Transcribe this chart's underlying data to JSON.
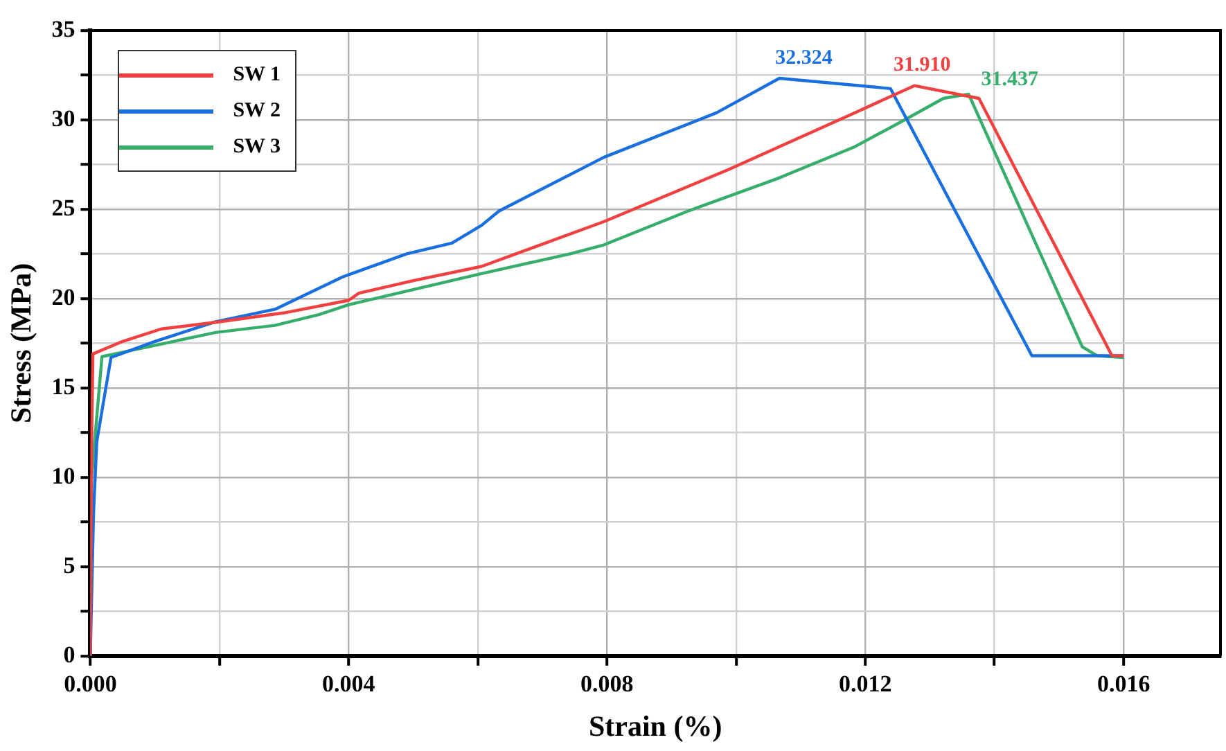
{
  "chart_data": {
    "type": "line",
    "xlabel": "Strain (%)",
    "ylabel": "Stress (MPa)",
    "xlim": [
      0,
      0.0175
    ],
    "ylim": [
      0,
      35
    ],
    "xticks": [
      {
        "value": 0,
        "label": "0.000"
      },
      {
        "value": 0.002,
        "label": null
      },
      {
        "value": 0.004,
        "label": "0.004"
      },
      {
        "value": 0.006,
        "label": null
      },
      {
        "value": 0.008,
        "label": "0.008"
      },
      {
        "value": 0.01,
        "label": null
      },
      {
        "value": 0.012,
        "label": "0.012"
      },
      {
        "value": 0.014,
        "label": null
      },
      {
        "value": 0.016,
        "label": "0.016"
      }
    ],
    "yticks": [
      0,
      {
        "value": 2.5,
        "label": null
      },
      5,
      {
        "value": 7.5,
        "label": null
      },
      10,
      {
        "value": 12.5,
        "label": null
      },
      15,
      {
        "value": 17.5,
        "label": null
      },
      20,
      {
        "value": 22.5,
        "label": null
      },
      25,
      {
        "value": 27.5,
        "label": null
      },
      30,
      {
        "value": 32.5,
        "label": null
      },
      35
    ],
    "grid": true,
    "legend": "top left",
    "marker": "none",
    "line_style": "solid",
    "series": [
      {
        "name": "SW 1",
        "color": "#f04040",
        "x": [
          0,
          2e-05,
          4e-05,
          0.0005,
          0.0011,
          0.002,
          0.003,
          0.004,
          0.00416,
          0.005,
          0.00606,
          0.00795,
          0.00987,
          0.01184,
          0.01276,
          0.01376,
          0.01582,
          0.016
        ],
        "values": [
          0,
          12,
          16.9,
          17.6,
          18.3,
          18.7,
          19.2,
          19.9,
          20.3,
          21,
          21.8,
          24.3,
          27.2,
          30.4,
          31.91,
          31.2,
          16.8,
          16.8
        ]
      },
      {
        "name": "SW 2",
        "color": "#1a6fdf",
        "x": [
          0,
          5e-05,
          0.0001,
          0.00032,
          0.001,
          0.00194,
          0.00286,
          0.0039,
          0.0049,
          0.0056,
          0.00606,
          0.00633,
          0.00795,
          0.0097,
          0.01067,
          0.01239,
          0.01458,
          0.016
        ],
        "values": [
          0,
          8,
          12,
          16.7,
          17.6,
          18.7,
          19.4,
          21.2,
          22.5,
          23.1,
          24.1,
          24.9,
          27.9,
          30.4,
          32.324,
          31.75,
          16.8,
          16.8
        ]
      },
      {
        "name": "SW 3",
        "color": "#37ad6b",
        "x": [
          0,
          2e-05,
          0.00018,
          0.00194,
          0.00286,
          0.00354,
          0.004,
          0.00606,
          0.00743,
          0.00795,
          0.00926,
          0.01063,
          0.01184,
          0.01261,
          0.01321,
          0.0136,
          0.01536,
          0.01559,
          0.016
        ],
        "values": [
          0,
          10,
          16.75,
          18.1,
          18.5,
          19.1,
          19.65,
          21.4,
          22.5,
          23,
          24.9,
          26.7,
          28.5,
          30,
          31.2,
          31.437,
          17.3,
          16.8,
          16.7
        ]
      }
    ],
    "annotations": [
      {
        "text": "31.910",
        "x": 0.01276,
        "y": 31.91
      },
      {
        "text": "32.324",
        "x": 0.01067,
        "y": 32.324
      },
      {
        "text": "31.437",
        "x": 0.0136,
        "y": 31.437
      }
    ]
  }
}
